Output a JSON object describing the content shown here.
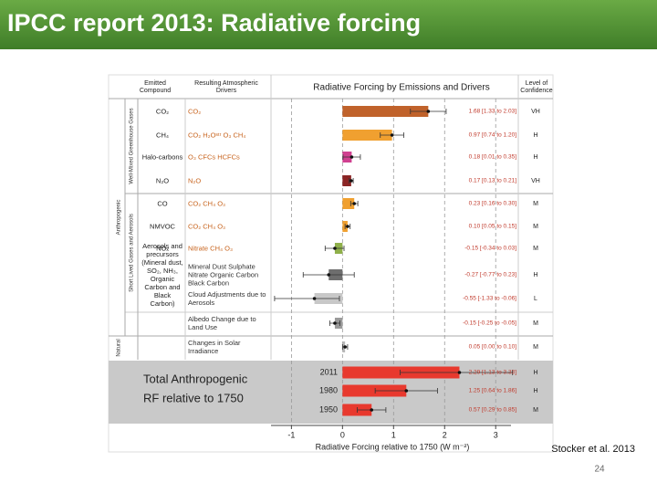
{
  "slide": {
    "title": "IPCC report 2013: Radiative forcing",
    "citation": "Stocker et al. 2013",
    "page_number": "24"
  },
  "chart_data": [
    {
      "type": "bar",
      "orientation": "horizontal",
      "title": "Radiative Forcing by Emissions and Drivers",
      "headers": {
        "compound": "Emitted Compound",
        "drivers": "Resulting Atmospheric Drivers",
        "confidence": "Level of Confidence"
      },
      "group_labels": [
        "Well-Mixed Greenhouse Gases",
        "Short Lived Gases and Aerosols",
        "Anthropogenic",
        "Natural"
      ],
      "categories": [
        "CO₂",
        "CH₄",
        "Halo-carbons",
        "N₂O",
        "CO",
        "NMVOC",
        "NOₓ",
        "Aerosols and precursors (Mineral dust, SO₂, NH₃, Organic Carbon and Black Carbon)",
        null,
        null,
        null
      ],
      "drivers": [
        "CO₂",
        "CO₂  H₂Oˢᵗʳ  O₃  CH₄",
        "O₃  CFCs  HCFCs",
        "N₂O",
        "CO₂  CH₄  O₃",
        "CO₂  CH₄  O₃",
        "Nitrate  CH₄  O₃",
        "Mineral Dust  Sulphate  Nitrate  Organic Carbon  Black Carbon",
        "Cloud Adjustments due to Aerosols",
        "Albedo Change due to Land Use",
        "Changes in Solar Irradiance"
      ],
      "values": [
        1.68,
        0.97,
        0.18,
        0.17,
        0.23,
        0.1,
        -0.15,
        -0.27,
        -0.55,
        -0.15,
        0.05
      ],
      "low": [
        1.33,
        0.74,
        0.01,
        0.13,
        0.16,
        0.05,
        -0.34,
        -0.77,
        -1.33,
        -0.25,
        0.0
      ],
      "high": [
        2.03,
        1.2,
        0.35,
        0.21,
        0.3,
        0.15,
        0.03,
        0.23,
        -0.06,
        -0.05,
        0.1
      ],
      "value_labels": [
        "1.68 [1.33 to 2.03]",
        "0.97 [0.74 to 1.20]",
        "0.18 [0.01 to 0.35]",
        "0.17 [0.13 to 0.21]",
        "0.23 [0.16 to 0.30]",
        "0.10 [0.05 to 0.15]",
        "-0.15 [-0.34 to 0.03]",
        "-0.27 [-0.77 to 0.23]",
        "-0.55 [-1.33 to -0.06]",
        "-0.15 [-0.25 to -0.05]",
        "0.05 [0.00 to 0.10]"
      ],
      "confidence": [
        "VH",
        "H",
        "H",
        "VH",
        "M",
        "M",
        "M",
        "H",
        "L",
        "M",
        "M"
      ],
      "colors": [
        "#c0622b",
        "#f0a030",
        "#d04090",
        "#8b2525",
        "#f0a030",
        "#f0a030",
        "#8fb04a",
        "#6e6e6e",
        "#c8c8c8",
        "#9a9a9a",
        "#b8b8b8"
      ],
      "xlim": [
        -1.4,
        3.3
      ],
      "xticks": [
        -1,
        0,
        1,
        2,
        3
      ],
      "xlabel": "Radiative Forcing relative to 1750 (W m⁻²)",
      "grid": true
    },
    {
      "type": "bar",
      "orientation": "horizontal",
      "title_lines": [
        "Total Anthropogenic",
        "RF relative to 1750"
      ],
      "categories": [
        "2011",
        "1980",
        "1950"
      ],
      "values": [
        2.29,
        1.25,
        0.57
      ],
      "low": [
        1.13,
        0.64,
        0.29
      ],
      "high": [
        3.33,
        1.86,
        0.85
      ],
      "value_labels": [
        "2.29 [1.13 to 3.33]",
        "1.25 [0.64 to 1.86]",
        "0.57 [0.29 to 0.85]"
      ],
      "confidence": [
        "H",
        "H",
        "M"
      ],
      "color": "#e8392e"
    }
  ]
}
